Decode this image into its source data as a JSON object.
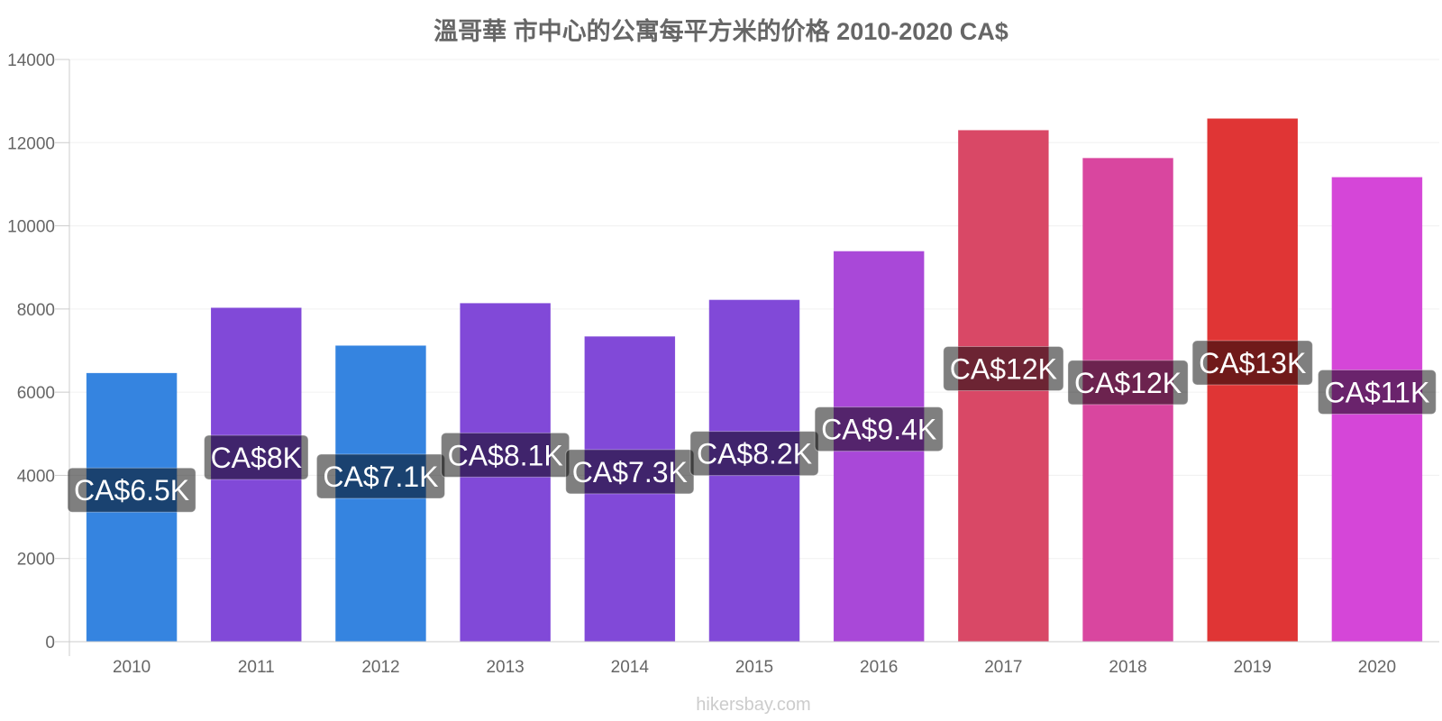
{
  "chart_data": {
    "type": "bar",
    "title": "溫哥華 市中心的公寓每平方米的价格 2010-2020 CA$",
    "xlabel": "",
    "ylabel": "",
    "ylim": [
      0,
      14000
    ],
    "yticks": [
      0,
      2000,
      4000,
      6000,
      8000,
      10000,
      12000,
      14000
    ],
    "grid": true,
    "categories": [
      "2010",
      "2011",
      "2012",
      "2013",
      "2014",
      "2015",
      "2016",
      "2017",
      "2018",
      "2019",
      "2020"
    ],
    "values": [
      6450,
      8020,
      7110,
      8130,
      7330,
      8210,
      9380,
      12290,
      11620,
      12570,
      11160
    ],
    "data_labels": [
      "CA$6.5K",
      "CA$8K",
      "CA$7.1K",
      "CA$8.1K",
      "CA$7.3K",
      "CA$8.2K",
      "CA$9.4K",
      "CA$12K",
      "CA$12K",
      "CA$13K",
      "CA$11K"
    ],
    "colors": [
      "#3584e0",
      "#8149d8",
      "#3584e0",
      "#8149d8",
      "#8149d8",
      "#8149d8",
      "#a948d8",
      "#d94866",
      "#d9469f",
      "#e03535",
      "#d546d8"
    ]
  },
  "watermark": "hikersbay.com"
}
